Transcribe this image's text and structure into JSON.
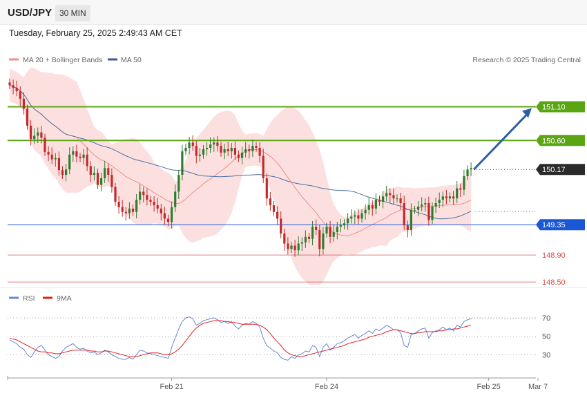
{
  "header": {
    "symbol": "USD/JPY",
    "interval": "30 MIN",
    "datetime": "Tuesday, February 25, 2025 2:49:43 AM CET"
  },
  "credit": "Research © 2025 Trading Central",
  "colors": {
    "up": "#2e7d2e",
    "down": "#c62828",
    "bands": "#fbd6d6",
    "ma20": "#f08c8c",
    "ma50": "#4a6fa5",
    "resistance": "#5aa612",
    "support": "#1a56d6",
    "support_red": "#e04848",
    "current": "#2a2a2a",
    "rsi": "#6a86d4",
    "rsi_ma": "#e02020",
    "arrow": "#2e5fa3"
  },
  "chart_data": [
    {
      "type": "candlestick",
      "legend": [
        {
          "name": "MA 20 + Bollinger Bands",
          "color": "#f08c8c"
        },
        {
          "name": "MA 50",
          "color": "#3b5998"
        }
      ],
      "ylim": [
        148.46,
        151.7
      ],
      "x_tick_labels": [
        {
          "label": "Feb 21",
          "index": 46
        },
        {
          "label": "Feb 24",
          "index": 90
        },
        {
          "label": "Feb 25",
          "index": 136
        },
        {
          "label": "Mar 7",
          "index": 150
        }
      ],
      "levels": [
        {
          "label": "151.10",
          "value": 151.1,
          "kind": "resistance"
        },
        {
          "label": "150.60",
          "value": 150.6,
          "kind": "resistance"
        },
        {
          "label": "150.17",
          "value": 150.17,
          "kind": "current"
        },
        {
          "label": "149.35",
          "value": 149.35,
          "kind": "support"
        },
        {
          "label": "148.90",
          "value": 148.9,
          "kind": "support_red"
        },
        {
          "label": "148.50",
          "value": 148.5,
          "kind": "support_red"
        }
      ],
      "close": [
        151.42,
        151.38,
        151.33,
        151.22,
        151.07,
        150.82,
        150.62,
        150.67,
        150.72,
        150.64,
        150.43,
        150.39,
        150.32,
        150.34,
        150.16,
        150.09,
        150.17,
        150.39,
        150.44,
        150.36,
        150.34,
        150.39,
        150.22,
        150.09,
        150.12,
        149.94,
        150.04,
        150.19,
        150.09,
        149.91,
        149.69,
        149.61,
        149.54,
        149.52,
        149.59,
        149.54,
        149.72,
        149.84,
        149.79,
        149.72,
        149.69,
        149.64,
        149.59,
        149.52,
        149.44,
        149.39,
        149.61,
        149.84,
        150.09,
        150.44,
        150.49,
        150.57,
        150.52,
        150.37,
        150.39,
        150.47,
        150.49,
        150.54,
        150.57,
        150.52,
        150.42,
        150.47,
        150.44,
        150.49,
        150.39,
        150.34,
        150.42,
        150.47,
        150.44,
        150.52,
        150.49,
        150.37,
        150.04,
        149.74,
        149.64,
        149.54,
        149.44,
        149.22,
        149.07,
        148.99,
        149.04,
        148.97,
        149.07,
        149.09,
        149.17,
        149.14,
        149.32,
        149.27,
        148.99,
        149.22,
        149.32,
        149.17,
        149.24,
        149.32,
        149.34,
        149.37,
        149.44,
        149.47,
        149.49,
        149.44,
        149.52,
        149.57,
        149.64,
        149.59,
        149.72,
        149.69,
        149.77,
        149.82,
        149.79,
        149.74,
        149.74,
        149.67,
        149.34,
        149.27,
        149.57,
        149.57,
        149.62,
        149.65,
        149.67,
        149.42,
        149.62,
        149.67,
        149.72,
        149.77,
        149.74,
        149.77,
        149.74,
        149.89,
        149.87,
        150.07,
        150.17,
        150.19
      ]
    },
    {
      "type": "line",
      "series": [
        {
          "name": "RSI",
          "color": "#6a86d4",
          "values": [
            46,
            44,
            42,
            38,
            36,
            30,
            27,
            33,
            38,
            40,
            35,
            30,
            28,
            26,
            28,
            34,
            38,
            40,
            42,
            38,
            36,
            37,
            34,
            32,
            33,
            30,
            32,
            35,
            33,
            30,
            28,
            26,
            25,
            25,
            27,
            25,
            30,
            35,
            34,
            32,
            31,
            30,
            29,
            28,
            27,
            26,
            38,
            48,
            58,
            66,
            70,
            71,
            69,
            62,
            64,
            67,
            68,
            69,
            70,
            68,
            65,
            66,
            64,
            66,
            61,
            58,
            62,
            64,
            63,
            66,
            64,
            60,
            48,
            40,
            37,
            34,
            32,
            27,
            25,
            24,
            28,
            26,
            30,
            31,
            34,
            33,
            40,
            38,
            28,
            38,
            42,
            35,
            38,
            42,
            43,
            45,
            48,
            50,
            52,
            48,
            51,
            53,
            56,
            53,
            58,
            56,
            59,
            62,
            60,
            57,
            57,
            54,
            40,
            38,
            52,
            53,
            56,
            58,
            59,
            48,
            54,
            56,
            57,
            60,
            57,
            59,
            56,
            62,
            60,
            66,
            68,
            69
          ]
        },
        {
          "name": "9MA",
          "color": "#e02020",
          "values": [
            48,
            47,
            46,
            44,
            42,
            40,
            38,
            36,
            34,
            33,
            33,
            32,
            32,
            31,
            31,
            32,
            33,
            34,
            35,
            35,
            35,
            35,
            35,
            34,
            34,
            33,
            33,
            34,
            34,
            33,
            32,
            31,
            30,
            29,
            28,
            28,
            28,
            29,
            30,
            31,
            32,
            32,
            32,
            31,
            30,
            30,
            31,
            33,
            36,
            40,
            45,
            50,
            55,
            59,
            62,
            64,
            65,
            66,
            67,
            67,
            67,
            66,
            66,
            65,
            65,
            64,
            63,
            63,
            63,
            63,
            63,
            62,
            60,
            57,
            53,
            48,
            44,
            40,
            35,
            32,
            30,
            29,
            28,
            28,
            29,
            30,
            31,
            32,
            33,
            34,
            35,
            36,
            37,
            38,
            39,
            40,
            42,
            43,
            44,
            45,
            46,
            47,
            49,
            50,
            51,
            52,
            53,
            55,
            56,
            57,
            57,
            56,
            55,
            54,
            53,
            53,
            54,
            54,
            55,
            55,
            55,
            55,
            56,
            56,
            57,
            57,
            58,
            58,
            59,
            60,
            61,
            62
          ]
        }
      ],
      "ylim": [
        10,
        85
      ],
      "levels": [
        {
          "label": "70",
          "value": 70
        },
        {
          "label": "50",
          "value": 50
        },
        {
          "label": "30",
          "value": 30
        }
      ]
    }
  ]
}
